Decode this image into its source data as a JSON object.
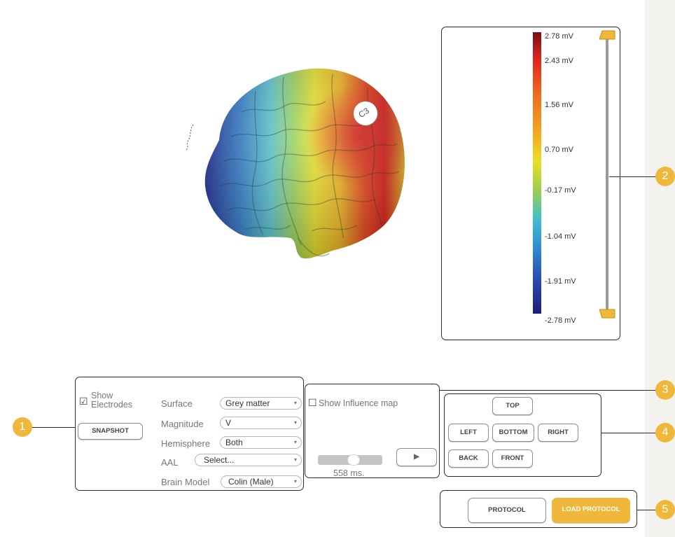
{
  "colorbar": {
    "ticks": [
      "2.78 mV",
      "2.43 mV",
      "1.56 mV",
      "0.70 mV",
      "-0.17 mV",
      "-1.04 mV",
      "-1.91 mV",
      "-2.78 mV"
    ],
    "gradient": [
      "#7a0f14",
      "#e3261e",
      "#f06a22",
      "#f2b321",
      "#e6e02a",
      "#9bd04a",
      "#45c0c8",
      "#2f8fd6",
      "#2a4bb0",
      "#1e1d7a"
    ],
    "slider_color": "#f0b83a"
  },
  "electrode": {
    "label": "C3"
  },
  "panel1": {
    "show_electrodes_label": "Show\nElectrodes",
    "show_electrodes_checked": true,
    "snapshot_label": "SNAPSHOT",
    "fields": {
      "surface": {
        "label": "Surface",
        "value": "Grey matter"
      },
      "magnitude": {
        "label": "Magnitude",
        "value": "V"
      },
      "hemisphere": {
        "label": "Hemisphere",
        "value": "Both"
      },
      "aal": {
        "label": "AAL",
        "value": "Select..."
      },
      "brain_model": {
        "label": "Brain Model",
        "value": "Colin (Male)"
      }
    }
  },
  "panel3": {
    "influence_label": "Show Influence map",
    "time_label": "558 ms.",
    "play_icon": "▶"
  },
  "panel4": {
    "top": "TOP",
    "left": "LEFT",
    "bottom": "BOTTOM",
    "right": "RIGHT",
    "back": "BACK",
    "front": "FRONT"
  },
  "panel5": {
    "protocol": "PROTOCOL",
    "load_protocol": "LOAD PROTOCOL",
    "accent": "#f0b83a"
  },
  "callouts": [
    "1",
    "2",
    "3",
    "4",
    "5"
  ],
  "dropdown_caret": "▾",
  "checkbox_checked_glyph": "☑",
  "checkbox_unchecked_glyph": "☐"
}
